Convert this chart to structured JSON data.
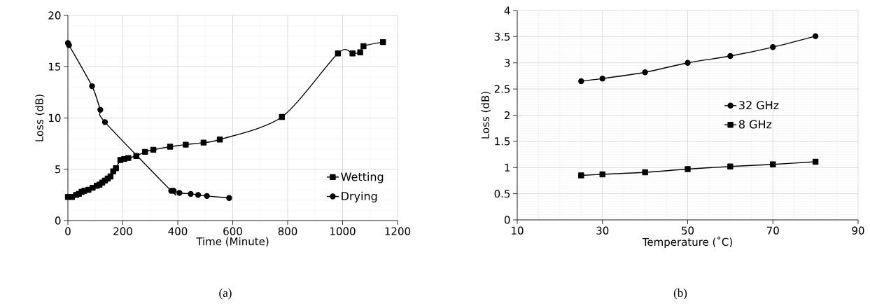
{
  "chart_data": [
    {
      "type": "line",
      "xlabel": "Time (Minute)",
      "ylabel": "Loss (dB)",
      "xlim": [
        0,
        1200
      ],
      "xticks": [
        0,
        200,
        400,
        600,
        800,
        1000,
        1200
      ],
      "ylim": [
        0,
        20
      ],
      "yticks": [
        0,
        5,
        10,
        15,
        20
      ],
      "grid": true,
      "legend": "bottom right",
      "annotations": [
        "(a)"
      ],
      "series": [
        {
          "name": "Wetting",
          "color": "#000000",
          "marker": "square",
          "x": [
            0,
            15,
            30,
            40,
            50,
            60,
            75,
            90,
            105,
            115,
            125,
            135,
            145,
            155,
            165,
            175,
            191,
            205,
            220,
            249,
            281,
            311,
            372,
            429,
            494,
            553,
            779,
            983,
            1036,
            1064,
            1076,
            1147
          ],
          "values": [
            2.3,
            2.3,
            2.5,
            2.6,
            2.8,
            2.9,
            3.0,
            3.2,
            3.4,
            3.5,
            3.7,
            3.9,
            4.1,
            4.3,
            4.8,
            5.1,
            5.9,
            6.0,
            6.1,
            6.3,
            6.7,
            6.9,
            7.2,
            7.4,
            7.6,
            7.9,
            10.1,
            16.3,
            16.3,
            16.4,
            17.0,
            17.4
          ]
        },
        {
          "name": "Drying",
          "color": "#000000",
          "marker": "circle",
          "x": [
            0,
            4,
            88,
            118,
            135,
            376,
            385,
            406,
            447,
            474,
            506,
            587
          ],
          "values": [
            17.3,
            17.1,
            13.1,
            10.8,
            9.6,
            2.9,
            2.9,
            2.7,
            2.6,
            2.5,
            2.4,
            2.2
          ]
        }
      ]
    },
    {
      "type": "line",
      "xlabel": "Temperature (˚C)",
      "ylabel": "Loss (dB)",
      "xlim": [
        10,
        90
      ],
      "xticks": [
        10,
        30,
        50,
        70,
        90
      ],
      "ylim": [
        0,
        4
      ],
      "yticks": [
        0,
        0.5,
        1,
        1.5,
        2,
        2.5,
        3,
        3.5,
        4
      ],
      "grid": true,
      "legend": "right",
      "annotations": [
        "(b)"
      ],
      "series": [
        {
          "name": "32 GHz",
          "color": "#000000",
          "marker": "circle",
          "x": [
            25,
            30,
            40,
            50,
            60,
            70,
            80
          ],
          "values": [
            2.65,
            2.7,
            2.82,
            3.0,
            3.13,
            3.3,
            3.51
          ]
        },
        {
          "name": "8 GHz",
          "color": "#000000",
          "marker": "square",
          "x": [
            25,
            30,
            40,
            50,
            60,
            70,
            80
          ],
          "values": [
            0.85,
            0.87,
            0.91,
            0.97,
            1.02,
            1.06,
            1.11
          ]
        }
      ]
    }
  ]
}
